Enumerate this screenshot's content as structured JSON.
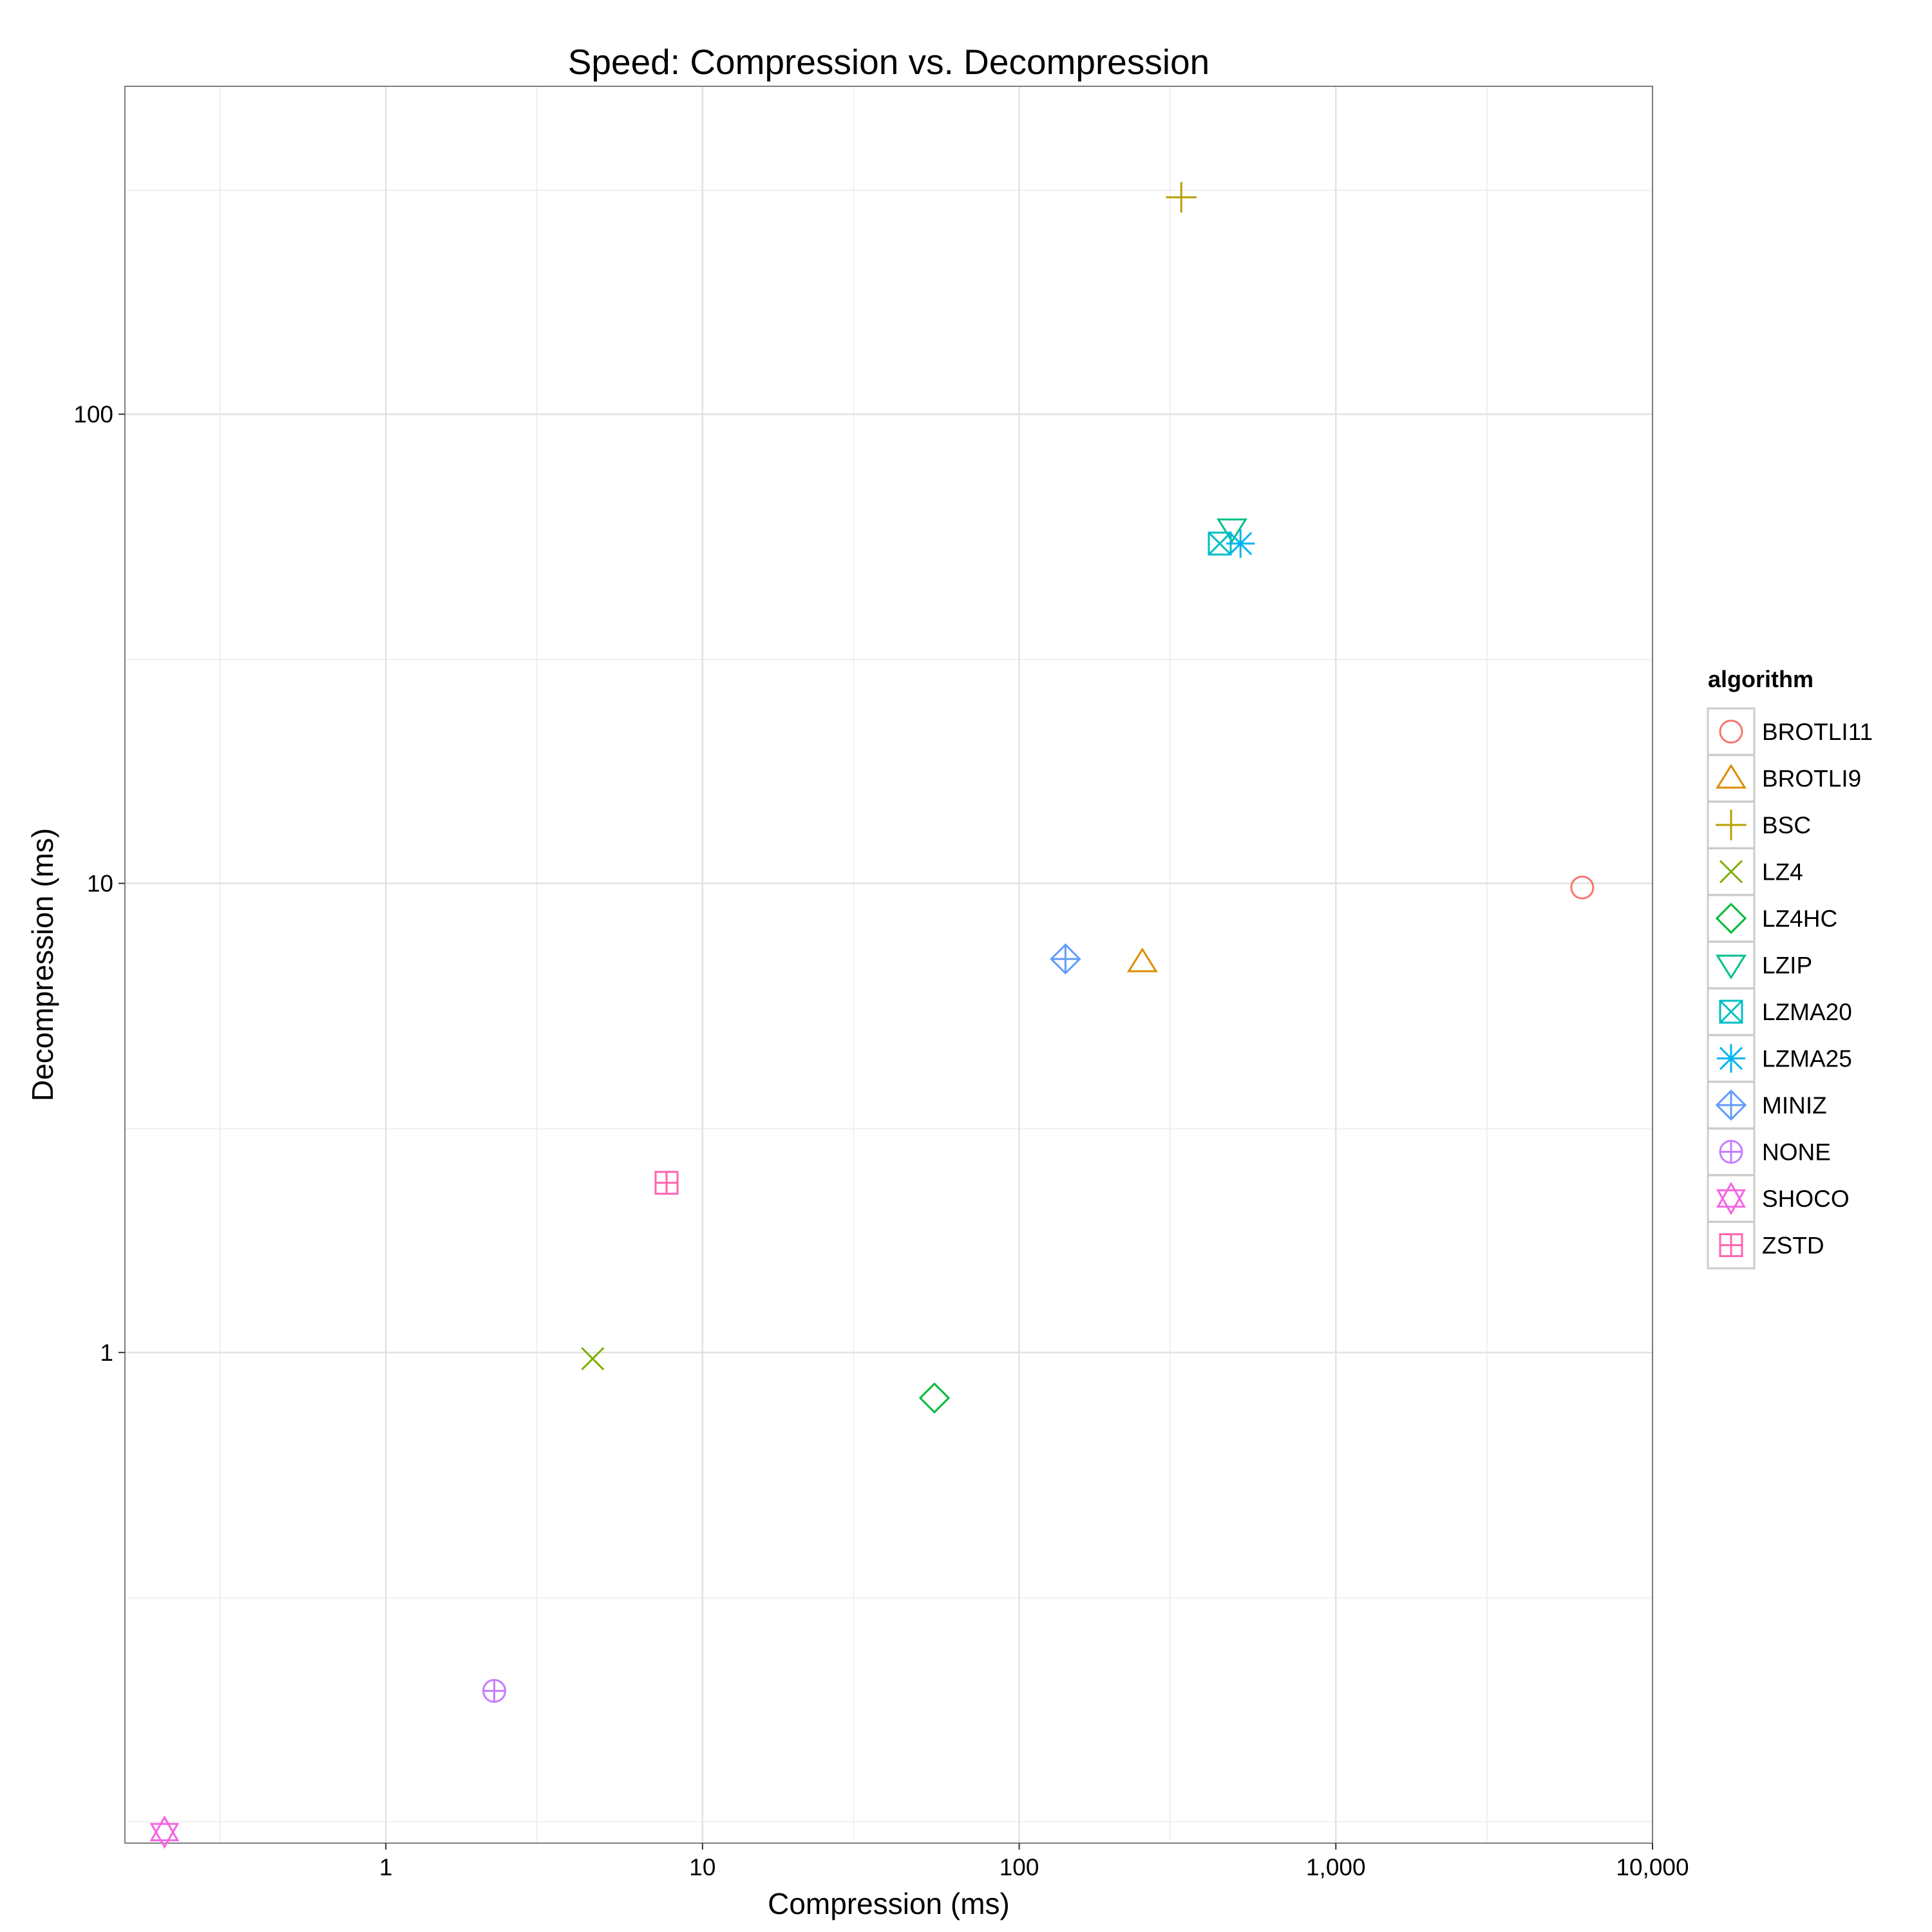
{
  "chart_data": {
    "type": "scatter",
    "title": "Speed: Compression vs. Decompression",
    "xlabel": "Compression (ms)",
    "ylabel": "Decompression (ms)",
    "x_scale": "log10",
    "y_scale": "log10",
    "xlim": [
      0.15,
      10000
    ],
    "ylim": [
      0.09,
      500
    ],
    "x_ticks": [
      1,
      10,
      100,
      1000,
      10000
    ],
    "x_tick_labels": [
      "1",
      "10",
      "100",
      "1,000",
      "10,000"
    ],
    "y_ticks": [
      1,
      10,
      100
    ],
    "y_tick_labels": [
      "1",
      "10",
      "100"
    ],
    "grid": true,
    "legend": {
      "title": "algorithm",
      "position": "right"
    },
    "series": [
      {
        "name": "BROTLI11",
        "shape": "circle",
        "color": "#F8766D",
        "x": 6000,
        "y": 9.8
      },
      {
        "name": "BROTLI9",
        "shape": "triangle-up",
        "color": "#DE8C00",
        "x": 245,
        "y": 6.8
      },
      {
        "name": "BSC",
        "shape": "plus",
        "color": "#B79F00",
        "x": 325,
        "y": 290
      },
      {
        "name": "LZ4",
        "shape": "cross",
        "color": "#7CAE00",
        "x": 4.5,
        "y": 0.97
      },
      {
        "name": "LZ4HC",
        "shape": "diamond",
        "color": "#00BA38",
        "x": 54,
        "y": 0.8
      },
      {
        "name": "LZIP",
        "shape": "triangle-down",
        "color": "#00C08B",
        "x": 470,
        "y": 57
      },
      {
        "name": "LZMA20",
        "shape": "square-cross",
        "color": "#00BFC4",
        "x": 430,
        "y": 53
      },
      {
        "name": "LZMA25",
        "shape": "asterisk",
        "color": "#00B4F0",
        "x": 500,
        "y": 53
      },
      {
        "name": "MINIZ",
        "shape": "diamond-plus",
        "color": "#619CFF",
        "x": 140,
        "y": 6.9
      },
      {
        "name": "NONE",
        "shape": "circle-plus",
        "color": "#C77CFF",
        "x": 2.2,
        "y": 0.19
      },
      {
        "name": "SHOCO",
        "shape": "star-of-david",
        "color": "#F564E3",
        "x": 0.2,
        "y": 0.095
      },
      {
        "name": "ZSTD",
        "shape": "square-plus",
        "color": "#FF64B0",
        "x": 7.7,
        "y": 2.3
      }
    ]
  }
}
